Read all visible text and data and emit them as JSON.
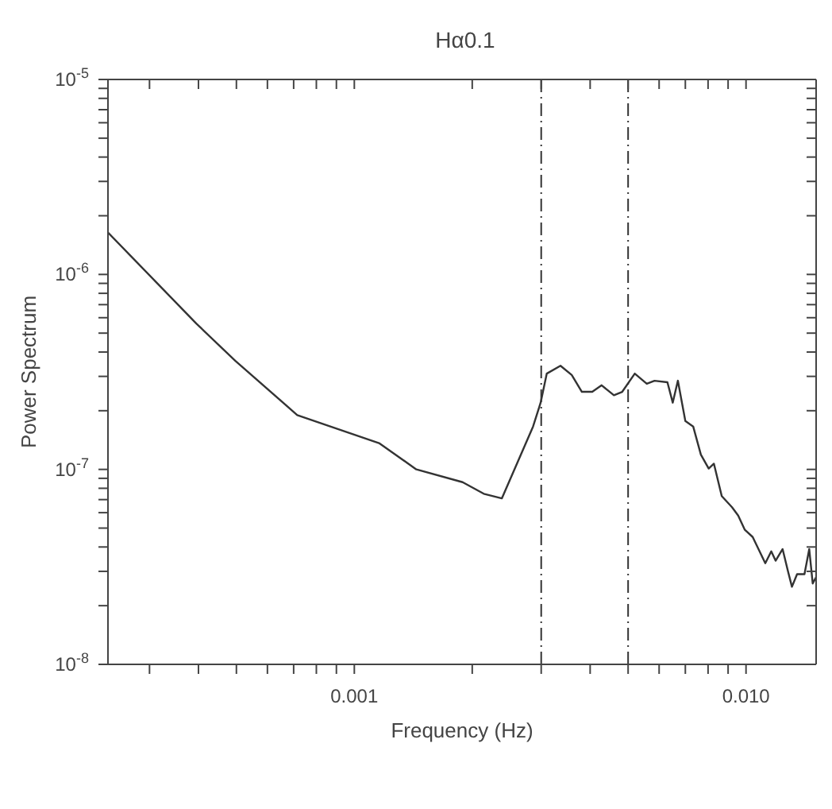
{
  "chart_data": {
    "type": "line",
    "title": "Hα0.1",
    "xlabel": "Frequency (Hz)",
    "ylabel": "Power Spectrum",
    "log": "xy",
    "marker": "none",
    "line_style": "solid",
    "xlim": [
      0.000235,
      0.0151
    ],
    "ylim": [
      1e-08,
      1e-05
    ],
    "xticks": [
      {
        "value": 0.0003,
        "label": null
      },
      {
        "value": 0.0004,
        "label": null
      },
      {
        "value": 0.0005,
        "label": null
      },
      {
        "value": 0.0006,
        "label": null
      },
      {
        "value": 0.0007,
        "label": null
      },
      {
        "value": 0.0008,
        "label": null
      },
      {
        "value": 0.0009,
        "label": null
      },
      {
        "value": 0.001,
        "label": "0.001"
      },
      {
        "value": 0.002,
        "label": null
      },
      {
        "value": 0.003,
        "label": null
      },
      {
        "value": 0.004,
        "label": null
      },
      {
        "value": 0.005,
        "label": null
      },
      {
        "value": 0.006,
        "label": null
      },
      {
        "value": 0.007,
        "label": null
      },
      {
        "value": 0.008,
        "label": null
      },
      {
        "value": 0.009,
        "label": null
      },
      {
        "value": 0.01,
        "label": "0.010"
      }
    ],
    "yticks": [
      {
        "value": 1e-08,
        "label": "10$^{-8}$"
      },
      {
        "value": 2e-08,
        "label": null
      },
      {
        "value": 3e-08,
        "label": null
      },
      {
        "value": 4e-08,
        "label": null
      },
      {
        "value": 5e-08,
        "label": null
      },
      {
        "value": 6e-08,
        "label": null
      },
      {
        "value": 7e-08,
        "label": null
      },
      {
        "value": 8e-08,
        "label": null
      },
      {
        "value": 9e-08,
        "label": null
      },
      {
        "value": 1e-07,
        "label": "10$^{-7}$"
      },
      {
        "value": 2e-07,
        "label": null
      },
      {
        "value": 3e-07,
        "label": null
      },
      {
        "value": 4e-07,
        "label": null
      },
      {
        "value": 5e-07,
        "label": null
      },
      {
        "value": 6e-07,
        "label": null
      },
      {
        "value": 7e-07,
        "label": null
      },
      {
        "value": 8e-07,
        "label": null
      },
      {
        "value": 9e-07,
        "label": null
      },
      {
        "value": 1e-06,
        "label": "10$^{-6}$"
      },
      {
        "value": 2e-06,
        "label": null
      },
      {
        "value": 3e-06,
        "label": null
      },
      {
        "value": 4e-06,
        "label": null
      },
      {
        "value": 5e-06,
        "label": null
      },
      {
        "value": 6e-06,
        "label": null
      },
      {
        "value": 7e-06,
        "label": null
      },
      {
        "value": 8e-06,
        "label": null
      },
      {
        "value": 9e-06,
        "label": null
      },
      {
        "value": 1e-05,
        "label": "10$^{-5}$"
      }
    ],
    "ref_lines": [
      {
        "axis": "x",
        "value": 0.003,
        "label": null,
        "color": "#333333",
        "line_style": "dashed"
      },
      {
        "axis": "x",
        "value": 0.005,
        "label": null,
        "color": "#333333",
        "line_style": "dashed"
      }
    ],
    "series": [
      {
        "color": "#333333",
        "x": [
          0.000235,
          0.000395,
          0.000497,
          0.000715,
          0.00116,
          0.00144,
          0.00189,
          0.00214,
          0.00238,
          0.00286,
          0.00299,
          0.0031,
          0.00336,
          0.00359,
          0.00381,
          0.00405,
          0.00428,
          0.0046,
          0.00483,
          0.0052,
          0.00558,
          0.00584,
          0.0063,
          0.0065,
          0.0067,
          0.007,
          0.00733,
          0.00767,
          0.00803,
          0.00828,
          0.00867,
          0.00921,
          0.00955,
          0.00993,
          0.0104,
          0.0112,
          0.0116,
          0.0119,
          0.0124,
          0.0128,
          0.0131,
          0.0135,
          0.0141,
          0.0145,
          0.0148,
          0.0151
        ],
        "values": [
          1.64e-06,
          5.6e-07,
          3.6e-07,
          1.9e-07,
          1.36e-07,
          1e-07,
          8.6e-08,
          7.5e-08,
          7.1e-08,
          1.66e-07,
          2.2e-07,
          3.1e-07,
          3.4e-07,
          3.05e-07,
          2.5e-07,
          2.5e-07,
          2.7e-07,
          2.4e-07,
          2.5e-07,
          3.1e-07,
          2.75e-07,
          2.85e-07,
          2.8e-07,
          2.2e-07,
          2.85e-07,
          1.77e-07,
          1.66e-07,
          1.19e-07,
          1.01e-07,
          1.07e-07,
          7.3e-08,
          6.4e-08,
          5.8e-08,
          4.9e-08,
          4.5e-08,
          3.3e-08,
          3.8e-08,
          3.4e-08,
          3.9e-08,
          3e-08,
          2.5e-08,
          2.9e-08,
          2.9e-08,
          3.9e-08,
          2.6e-08,
          2.8e-08
        ]
      }
    ]
  }
}
